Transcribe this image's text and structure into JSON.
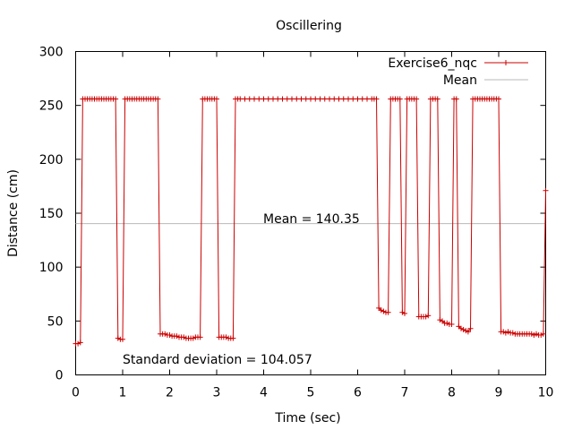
{
  "chart_data": {
    "type": "line",
    "title": "Oscillering",
    "xlabel": "Time (sec)",
    "ylabel": "Distance (cm)",
    "xlim": [
      0,
      10
    ],
    "ylim": [
      0,
      300
    ],
    "x_ticks": [
      "0",
      "1",
      "2",
      "3",
      "4",
      "5",
      "6",
      "7",
      "8",
      "9",
      "10"
    ],
    "y_ticks": [
      "0",
      "50",
      "100",
      "150",
      "200",
      "250",
      "300"
    ],
    "grid": false,
    "legend_position": "top-right",
    "series": [
      {
        "name": "Exercise6_nqc",
        "color": "#cc0000",
        "marker": "plus",
        "x": [
          0.0,
          0.05,
          0.1,
          0.15,
          0.2,
          0.25,
          0.3,
          0.35,
          0.4,
          0.45,
          0.5,
          0.55,
          0.6,
          0.65,
          0.7,
          0.75,
          0.8,
          0.85,
          0.9,
          0.95,
          1.0,
          1.05,
          1.1,
          1.15,
          1.2,
          1.25,
          1.3,
          1.35,
          1.4,
          1.45,
          1.5,
          1.55,
          1.6,
          1.65,
          1.7,
          1.75,
          1.8,
          1.85,
          1.9,
          1.95,
          2.0,
          2.05,
          2.1,
          2.15,
          2.2,
          2.25,
          2.3,
          2.35,
          2.4,
          2.45,
          2.5,
          2.55,
          2.6,
          2.65,
          2.7,
          2.75,
          2.8,
          2.85,
          2.9,
          2.95,
          3.0,
          3.05,
          3.1,
          3.15,
          3.2,
          3.25,
          3.3,
          3.35,
          3.4,
          3.45,
          3.5,
          3.6,
          3.7,
          3.8,
          3.9,
          4.0,
          4.1,
          4.2,
          4.3,
          4.4,
          4.5,
          4.6,
          4.7,
          4.8,
          4.9,
          5.0,
          5.1,
          5.2,
          5.3,
          5.4,
          5.5,
          5.6,
          5.7,
          5.8,
          5.9,
          6.0,
          6.1,
          6.2,
          6.3,
          6.35,
          6.4,
          6.45,
          6.5,
          6.55,
          6.6,
          6.65,
          6.7,
          6.75,
          6.8,
          6.85,
          6.9,
          6.95,
          7.0,
          7.05,
          7.1,
          7.15,
          7.2,
          7.25,
          7.3,
          7.35,
          7.4,
          7.45,
          7.5,
          7.55,
          7.6,
          7.65,
          7.7,
          7.75,
          7.8,
          7.85,
          7.9,
          7.95,
          8.0,
          8.05,
          8.1,
          8.15,
          8.2,
          8.25,
          8.3,
          8.35,
          8.4,
          8.45,
          8.5,
          8.55,
          8.6,
          8.65,
          8.7,
          8.75,
          8.8,
          8.85,
          8.9,
          8.95,
          9.0,
          9.05,
          9.1,
          9.15,
          9.2,
          9.25,
          9.3,
          9.35,
          9.4,
          9.45,
          9.5,
          9.55,
          9.6,
          9.65,
          9.7,
          9.75,
          9.8,
          9.85,
          9.9,
          9.95,
          10.0
        ],
        "y": [
          29,
          29,
          30,
          256,
          256,
          256,
          256,
          256,
          256,
          256,
          256,
          256,
          256,
          256,
          256,
          256,
          256,
          256,
          34,
          33,
          33,
          256,
          256,
          256,
          256,
          256,
          256,
          256,
          256,
          256,
          256,
          256,
          256,
          256,
          256,
          256,
          38,
          38,
          38,
          37,
          37,
          36,
          36,
          36,
          35,
          35,
          35,
          34,
          34,
          34,
          34,
          35,
          35,
          35,
          256,
          256,
          256,
          256,
          256,
          256,
          256,
          35,
          35,
          35,
          35,
          34,
          34,
          34,
          256,
          256,
          256,
          256,
          256,
          256,
          256,
          256,
          256,
          256,
          256,
          256,
          256,
          256,
          256,
          256,
          256,
          256,
          256,
          256,
          256,
          256,
          256,
          256,
          256,
          256,
          256,
          256,
          256,
          256,
          256,
          256,
          256,
          62,
          60,
          59,
          58,
          58,
          256,
          256,
          256,
          256,
          256,
          58,
          57,
          256,
          256,
          256,
          256,
          256,
          54,
          54,
          54,
          54,
          55,
          256,
          256,
          256,
          256,
          51,
          50,
          48,
          48,
          47,
          47,
          256,
          256,
          45,
          43,
          42,
          41,
          40,
          43,
          256,
          256,
          256,
          256,
          256,
          256,
          256,
          256,
          256,
          256,
          256,
          256,
          40,
          40,
          39,
          40,
          39,
          39,
          38,
          38,
          38,
          38,
          38,
          38,
          38,
          38,
          37,
          38,
          37,
          37,
          38,
          171
        ]
      },
      {
        "name": "Mean",
        "color": "#b8b8b8",
        "marker": "none",
        "x": [
          0,
          10
        ],
        "y": [
          140.35,
          140.35
        ]
      }
    ],
    "annotations": {
      "mean": "Mean = 140.35",
      "stddev": "Standard deviation = 104.057"
    }
  }
}
